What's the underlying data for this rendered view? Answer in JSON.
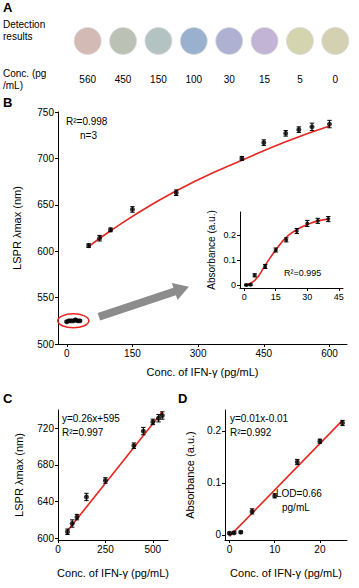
{
  "chart_data": [
    {
      "panel": "A",
      "type": "swatch",
      "title": "Detection results",
      "xlabel": "Conc. (pg/mL)",
      "categories": [
        "560",
        "450",
        "150",
        "100",
        "30",
        "15",
        "5",
        "0"
      ],
      "colors": [
        "#c9a9a3",
        "#aab1a3",
        "#9fb4b3",
        "#7f9dc2",
        "#9b9dc8",
        "#b3a1c9",
        "#c9ca9b",
        "#c8c59d"
      ]
    },
    {
      "panel": "B",
      "type": "scatter",
      "xlabel": "Conc. of IFN-γ (pg/mL)",
      "ylabel": "LSPR λmax (nm)",
      "xlim": [
        -20,
        640
      ],
      "xticks": [
        0,
        150,
        300,
        450,
        600
      ],
      "ylim": [
        500,
        750
      ],
      "yticks": [
        500,
        550,
        600,
        650,
        700,
        750
      ],
      "annotations": [
        "R²=0.998",
        "n=3"
      ],
      "series": [
        {
          "type": "scatter",
          "color": "#000000",
          "marker": "circle",
          "x": [
            0,
            5,
            10,
            15,
            20,
            25,
            30
          ],
          "values": [
            524,
            525,
            525,
            525,
            526,
            525,
            525
          ],
          "errors": [
            1,
            1,
            1,
            1,
            1,
            1,
            1
          ]
        },
        {
          "type": "scatter",
          "color": "#000000",
          "marker": "circle",
          "x": [
            50,
            75,
            100,
            150,
            250,
            400,
            450,
            500,
            530,
            560,
            600
          ],
          "values": [
            606,
            614,
            623,
            645,
            663,
            700,
            717,
            727,
            731,
            734,
            737
          ],
          "errors": [
            2,
            3,
            2,
            3,
            3,
            2,
            3,
            3,
            3,
            4,
            4
          ]
        },
        {
          "type": "line",
          "color": "#e8251f",
          "line_style": "solid",
          "x": [
            50,
            100,
            200,
            300,
            400,
            500,
            600
          ],
          "values": [
            605,
            622,
            652,
            677,
            698,
            718,
            735
          ]
        }
      ]
    },
    {
      "type": "scatter",
      "ylabel": "Absorbance (a.u.)",
      "xlim": [
        -2,
        47
      ],
      "xticks": [
        0,
        15,
        30,
        45
      ],
      "ylim": [
        -0.01,
        0.29
      ],
      "yticks": [
        0,
        0.1,
        0.2
      ],
      "annotations": [
        "R²=0.995"
      ],
      "series": [
        {
          "type": "scatter",
          "color": "#000000",
          "marker": "circle",
          "x": [
            1,
            3,
            5,
            10,
            15,
            20,
            25,
            30,
            35,
            40
          ],
          "values": [
            0.002,
            0.003,
            0.04,
            0.075,
            0.14,
            0.18,
            0.215,
            0.245,
            0.255,
            0.262
          ],
          "errors": [
            0.003,
            0.003,
            0.006,
            0.008,
            0.008,
            0.008,
            0.01,
            0.012,
            0.01,
            0.01
          ]
        },
        {
          "type": "line",
          "color": "#e8251f",
          "line_style": "solid",
          "x": [
            0,
            5,
            10,
            15,
            20,
            25,
            30,
            35,
            40
          ],
          "values": [
            0.0,
            0.02,
            0.08,
            0.14,
            0.19,
            0.22,
            0.24,
            0.255,
            0.262
          ]
        }
      ]
    },
    {
      "panel": "C",
      "type": "scatter",
      "xlabel": "Conc. of IFN-γ (pg/mL)",
      "ylabel": "LSPR λmax (nm)",
      "xlim": [
        0,
        580
      ],
      "xticks": [
        0,
        250,
        500
      ],
      "ylim": [
        598,
        740
      ],
      "yticks": [
        600,
        640,
        680,
        720
      ],
      "annotations": [
        "y=0.26x+595",
        "R²=0.997"
      ],
      "series": [
        {
          "type": "scatter",
          "color": "#000000",
          "marker": "circle",
          "x": [
            50,
            75,
            100,
            150,
            250,
            400,
            450,
            500,
            530,
            550
          ],
          "values": [
            607,
            616,
            623,
            645,
            663,
            701,
            717,
            727,
            731,
            734
          ],
          "errors": [
            3,
            4,
            3,
            4,
            3,
            3,
            4,
            3,
            4,
            4
          ]
        },
        {
          "type": "line",
          "color": "#e8251f",
          "line_style": "solid",
          "x": [
            50,
            550
          ],
          "values": [
            608,
            738
          ]
        }
      ]
    },
    {
      "panel": "D",
      "type": "scatter",
      "xlabel": "Conc. of IFN-γ (pg/mL)",
      "ylabel": "Absorbance (a.u.)",
      "xlim": [
        -1,
        26
      ],
      "xticks": [
        0,
        10,
        20
      ],
      "ylim": [
        -0.01,
        0.24
      ],
      "yticks": [
        0,
        0.1,
        0.2
      ],
      "annotations": [
        "y=0.01x-0.01",
        "R²=0.992",
        "LOD=0.66",
        "pg/mL"
      ],
      "series": [
        {
          "type": "scatter",
          "color": "#000000",
          "marker": "circle",
          "x": [
            0,
            1,
            2.5,
            5,
            10,
            15,
            20,
            25
          ],
          "values": [
            0.003,
            0.004,
            0.005,
            0.045,
            0.075,
            0.14,
            0.18,
            0.215
          ],
          "errors": [
            0.002,
            0.002,
            0.002,
            0.005,
            0.004,
            0.005,
            0.004,
            0.005
          ]
        },
        {
          "type": "line",
          "color": "#e8251f",
          "line_style": "solid",
          "x": [
            0,
            25
          ],
          "values": [
            -0.003,
            0.22
          ]
        }
      ]
    }
  ]
}
